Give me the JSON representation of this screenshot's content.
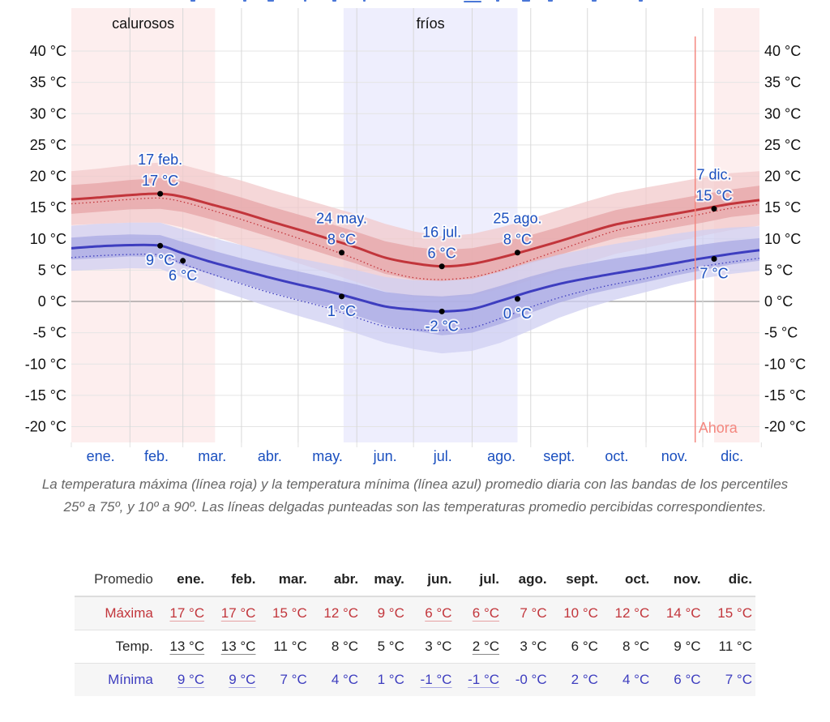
{
  "chart_data": {
    "type": "line",
    "title": "",
    "xlabel": "",
    "ylabel": "",
    "ylim": [
      -22,
      43
    ],
    "y_ticks": [
      40,
      35,
      30,
      25,
      20,
      15,
      10,
      5,
      0,
      -5,
      -10,
      -15,
      -20
    ],
    "y_tick_labels": [
      "40 °C",
      "35 °C",
      "30 °C",
      "25 °C",
      "20 °C",
      "15 °C",
      "10 °C",
      "5 °C",
      "0 °C",
      "-5 °C",
      "-10 °C",
      "-15 °C",
      "-20 °C"
    ],
    "months": [
      "ene.",
      "feb.",
      "mar.",
      "abr.",
      "may.",
      "jun.",
      "jul.",
      "ago.",
      "sept.",
      "oct.",
      "nov.",
      "dic."
    ],
    "grid": true,
    "x_day_of_year": [
      1,
      15,
      32,
      48,
      60,
      75,
      91,
      106,
      121,
      136,
      152,
      167,
      182,
      197,
      213,
      228,
      244,
      259,
      274,
      289,
      305,
      320,
      335,
      350,
      365
    ],
    "series": [
      {
        "name": "Máxima (promedio)",
        "color": "#c2353b",
        "style": "solid",
        "values": [
          16.3,
          16.6,
          17.0,
          17.2,
          16.7,
          15.5,
          14.2,
          12.8,
          11.5,
          10.1,
          8.6,
          7.0,
          6.1,
          5.6,
          6.0,
          7.0,
          8.3,
          9.6,
          11.0,
          12.3,
          13.2,
          14.0,
          14.8,
          15.6,
          16.2
        ]
      },
      {
        "name": "Máxima percibida",
        "color": "#c2353b",
        "style": "dotted",
        "values": [
          15.6,
          15.9,
          16.3,
          16.5,
          15.9,
          14.6,
          13.1,
          11.6,
          10.1,
          8.5,
          6.7,
          4.9,
          3.8,
          3.5,
          3.9,
          5.0,
          6.6,
          8.2,
          9.8,
          11.3,
          12.3,
          13.1,
          14.0,
          14.9,
          15.5
        ]
      },
      {
        "name": "Mínima (promedio)",
        "color": "#3d3dbf",
        "style": "solid",
        "values": [
          8.5,
          8.8,
          9.0,
          8.9,
          7.7,
          6.3,
          5.0,
          3.8,
          2.7,
          1.7,
          0.4,
          -0.8,
          -1.3,
          -1.6,
          -1.2,
          0.1,
          1.6,
          2.8,
          3.7,
          4.5,
          5.3,
          6.1,
          6.9,
          7.6,
          8.2
        ]
      },
      {
        "name": "Mínima percibida",
        "color": "#3d3dbf",
        "style": "dotted",
        "values": [
          7.0,
          7.3,
          7.5,
          7.4,
          6.0,
          4.4,
          2.8,
          1.4,
          0.2,
          -1.0,
          -2.6,
          -4.0,
          -4.5,
          -4.6,
          -4.2,
          -2.7,
          -0.9,
          0.6,
          1.8,
          2.8,
          3.7,
          4.7,
          5.6,
          6.3,
          6.9
        ]
      }
    ],
    "bands": [
      {
        "name": "Máxima p10-p90",
        "color": "#f1c9cb",
        "low": [
          12.2,
          12.4,
          12.6,
          12.6,
          11.8,
          10.5,
          9.0,
          7.6,
          6.1,
          4.7,
          3.1,
          1.6,
          0.7,
          0.5,
          0.9,
          2.0,
          3.4,
          4.8,
          6.2,
          7.6,
          8.6,
          9.5,
          10.5,
          11.4,
          12.1
        ],
        "high": [
          20.8,
          21.2,
          21.8,
          22.2,
          21.8,
          20.6,
          19.3,
          17.9,
          16.6,
          15.3,
          13.9,
          12.4,
          11.2,
          10.4,
          10.8,
          11.8,
          13.2,
          14.6,
          16.0,
          17.3,
          18.2,
          19.0,
          19.8,
          20.5,
          20.8
        ]
      },
      {
        "name": "Máxima p25-p75",
        "color": "#e6a4a7",
        "low": [
          14.0,
          14.3,
          14.7,
          14.8,
          14.3,
          13.1,
          11.7,
          10.3,
          8.9,
          7.5,
          6.0,
          4.4,
          3.5,
          3.2,
          3.6,
          4.7,
          6.1,
          7.4,
          8.8,
          10.1,
          11.0,
          11.8,
          12.6,
          13.5,
          14.0
        ],
        "high": [
          18.6,
          18.9,
          19.4,
          19.7,
          19.2,
          18.0,
          16.6,
          15.2,
          13.9,
          12.6,
          11.1,
          9.6,
          8.7,
          8.2,
          8.5,
          9.4,
          10.6,
          11.9,
          13.3,
          14.6,
          15.5,
          16.3,
          17.1,
          17.9,
          18.5
        ]
      },
      {
        "name": "Mínima p10-p90",
        "color": "#cfcff1",
        "low": [
          4.9,
          5.1,
          5.3,
          5.2,
          3.8,
          2.2,
          0.6,
          -0.9,
          -2.3,
          -3.6,
          -5.1,
          -6.6,
          -7.6,
          -8.3,
          -7.9,
          -6.6,
          -4.6,
          -2.6,
          -1.0,
          0.3,
          1.5,
          2.7,
          3.7,
          4.4,
          4.9
        ],
        "high": [
          12.1,
          12.4,
          12.6,
          12.6,
          11.5,
          10.2,
          9.0,
          7.9,
          6.9,
          6.0,
          5.0,
          3.9,
          3.4,
          3.3,
          3.6,
          4.8,
          6.3,
          7.5,
          8.4,
          9.2,
          10.0,
          10.8,
          11.4,
          11.8,
          12.0
        ]
      },
      {
        "name": "Mínima p25-p75",
        "color": "#a9a9e3",
        "low": [
          6.7,
          6.9,
          7.2,
          7.1,
          5.8,
          4.3,
          2.9,
          1.5,
          0.3,
          -0.8,
          -2.3,
          -3.8,
          -4.7,
          -5.4,
          -5.0,
          -3.6,
          -1.8,
          -0.2,
          1.1,
          2.1,
          3.1,
          4.1,
          5.0,
          5.9,
          6.5
        ],
        "high": [
          10.2,
          10.5,
          10.7,
          10.6,
          9.5,
          8.2,
          6.9,
          5.8,
          4.8,
          3.8,
          2.7,
          1.5,
          1.0,
          0.8,
          1.2,
          2.5,
          4.0,
          5.2,
          6.1,
          6.9,
          7.6,
          8.4,
          9.1,
          9.7,
          10.1
        ]
      }
    ],
    "season_shading": [
      {
        "label": "calurosos",
        "color": "#fdeeee",
        "from_day": 1,
        "to_day": 77
      },
      {
        "label": "fríos",
        "color": "#eeeefd",
        "from_day": 145,
        "to_day": 237
      },
      {
        "label": "",
        "color": "#fdeeee",
        "from_day": 341,
        "to_day": 365
      }
    ],
    "now_marker": {
      "label": "Ahora",
      "day": 331,
      "color": "#f4877f"
    },
    "annotations": [
      {
        "series": "max",
        "day": 48,
        "value": 17.2,
        "date": "17 feb.",
        "label": "17 °C",
        "position": "above"
      },
      {
        "series": "min",
        "day": 48,
        "value": 8.9,
        "label": "9 °C",
        "position": "below"
      },
      {
        "series": "min",
        "day": 60,
        "value": 6.5,
        "label": "6 °C",
        "position": "below"
      },
      {
        "series": "max",
        "day": 144,
        "value": 7.8,
        "date": "24 may.",
        "label": "8 °C",
        "position": "above"
      },
      {
        "series": "min",
        "day": 144,
        "value": 0.8,
        "label": "1 °C",
        "position": "below"
      },
      {
        "series": "max",
        "day": 197,
        "value": 5.6,
        "date": "16 jul.",
        "label": "6 °C",
        "position": "above"
      },
      {
        "series": "min",
        "day": 197,
        "value": -1.6,
        "label": "-2 °C",
        "position": "below"
      },
      {
        "series": "max",
        "day": 237,
        "value": 7.8,
        "date": "25 ago.",
        "label": "8 °C",
        "position": "above"
      },
      {
        "series": "min",
        "day": 237,
        "value": 0.4,
        "label": "0 °C",
        "position": "below"
      },
      {
        "series": "max",
        "day": 341,
        "value": 14.8,
        "date": "7 dic.",
        "label": "15 °C",
        "position": "above"
      },
      {
        "series": "min",
        "day": 341,
        "value": 6.8,
        "label": "7 °C",
        "position": "below"
      }
    ]
  },
  "caption": "La temperatura máxima (línea roja) y la temperatura mínima (línea azul) promedio diaria con las bandas de los percentiles 25º a 75º, y 10º a 90º. Las líneas delgadas punteadas son las temperaturas promedio percibidas correspondientes.",
  "table": {
    "header_label": "Promedio",
    "months": [
      "ene.",
      "feb.",
      "mar.",
      "abr.",
      "may.",
      "jun.",
      "jul.",
      "ago.",
      "sept.",
      "oct.",
      "nov.",
      "dic."
    ],
    "rows": [
      {
        "key": "max",
        "label": "Máxima",
        "values": [
          "17 °C",
          "17 °C",
          "15 °C",
          "12 °C",
          "9 °C",
          "6 °C",
          "6 °C",
          "7 °C",
          "10 °C",
          "12 °C",
          "14 °C",
          "15 °C"
        ],
        "underlined": [
          true,
          true,
          false,
          false,
          false,
          true,
          true,
          false,
          false,
          false,
          false,
          false
        ]
      },
      {
        "key": "mean",
        "label": "Temp.",
        "values": [
          "13 °C",
          "13 °C",
          "11 °C",
          "8 °C",
          "5 °C",
          "3 °C",
          "2 °C",
          "3 °C",
          "6 °C",
          "8 °C",
          "9 °C",
          "11 °C"
        ],
        "underlined": [
          true,
          true,
          false,
          false,
          false,
          false,
          true,
          false,
          false,
          false,
          false,
          false
        ]
      },
      {
        "key": "min",
        "label": "Mínima",
        "values": [
          "9 °C",
          "9 °C",
          "7 °C",
          "4 °C",
          "1 °C",
          "-1 °C",
          "-1 °C",
          "-0 °C",
          "2 °C",
          "4 °C",
          "6 °C",
          "7 °C"
        ],
        "underlined": [
          true,
          true,
          false,
          false,
          false,
          true,
          true,
          false,
          false,
          false,
          false,
          false
        ]
      }
    ]
  }
}
